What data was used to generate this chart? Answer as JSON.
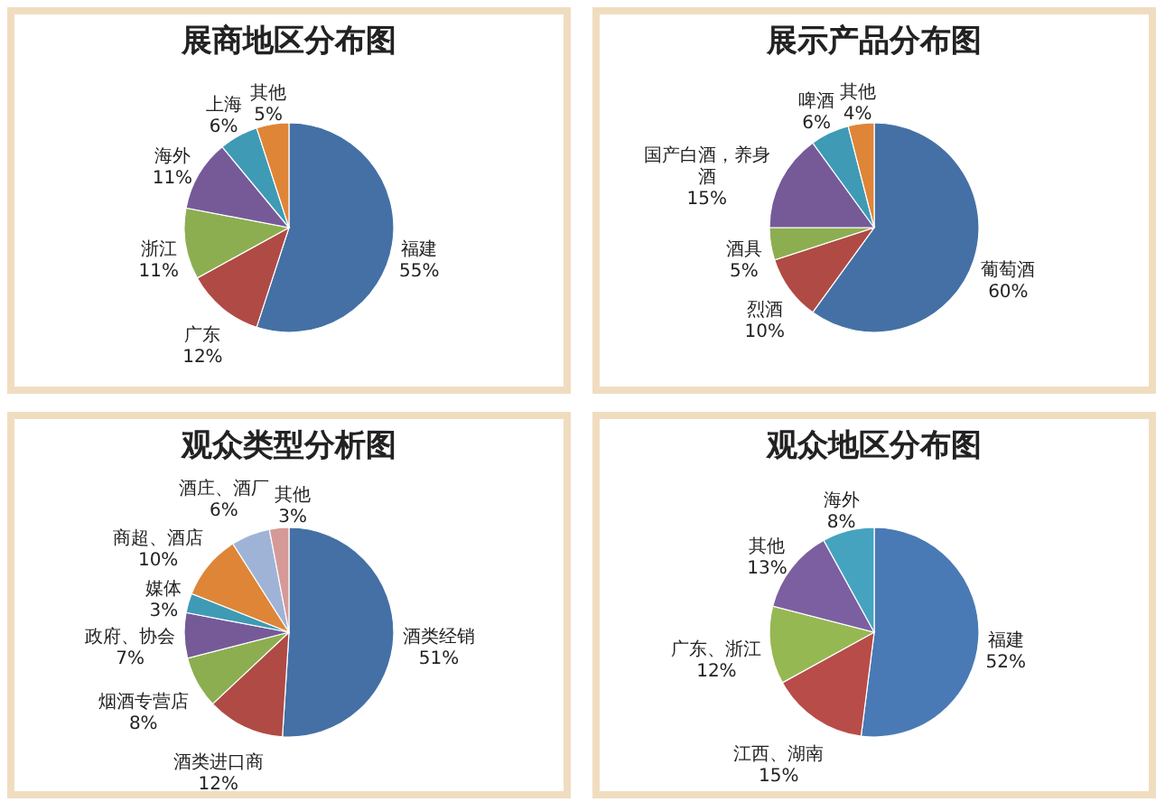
{
  "chart_data": [
    {
      "type": "pie",
      "title": "展商地区分布图",
      "categories": [
        "福建",
        "广东",
        "浙江",
        "海外",
        "上海",
        "其他"
      ],
      "values": [
        55,
        12,
        11,
        11,
        6,
        5
      ],
      "value_labels": [
        "55%",
        "12%",
        "11%",
        "11%",
        "6%",
        "5%"
      ],
      "colors": [
        "#4470a5",
        "#b04a45",
        "#8cae50",
        "#765a98",
        "#3f9ab5",
        "#de8538"
      ]
    },
    {
      "type": "pie",
      "title": "展示产品分布图",
      "categories": [
        "葡萄酒",
        "烈酒",
        "酒具",
        "国产白酒，养身酒",
        "啤酒",
        "其他"
      ],
      "values": [
        60,
        10,
        5,
        15,
        6,
        4
      ],
      "value_labels": [
        "60%",
        "10%",
        "5%",
        "15%",
        "6%",
        "4%"
      ],
      "colors": [
        "#4470a5",
        "#b04a45",
        "#8cae50",
        "#765a98",
        "#3f9ab5",
        "#de8538"
      ]
    },
    {
      "type": "pie",
      "title": "观众类型分析图",
      "categories": [
        "酒类经销",
        "酒类进口商",
        "烟酒专营店",
        "政府、协会",
        "媒体",
        "商超、酒店",
        "酒庄、酒厂",
        "其他"
      ],
      "values": [
        51,
        12,
        8,
        7,
        3,
        10,
        6,
        3
      ],
      "value_labels": [
        "51%",
        "12%",
        "8%",
        "7%",
        "3%",
        "10%",
        "6%",
        "3%"
      ],
      "colors": [
        "#4470a5",
        "#b04a45",
        "#8cae50",
        "#765a98",
        "#3f9ab5",
        "#de8538",
        "#9fb3d6",
        "#d59a98"
      ]
    },
    {
      "type": "pie",
      "title": "观众地区分布图",
      "categories": [
        "福建",
        "江西、湖南",
        "广东、浙江",
        "其他",
        "海外"
      ],
      "values": [
        52,
        15,
        12,
        13,
        8
      ],
      "value_labels": [
        "52%",
        "15%",
        "12%",
        "13%",
        "8%"
      ],
      "colors": [
        "#4a7ab5",
        "#b84c48",
        "#95b853",
        "#7c5fa0",
        "#45a3c0"
      ]
    }
  ]
}
